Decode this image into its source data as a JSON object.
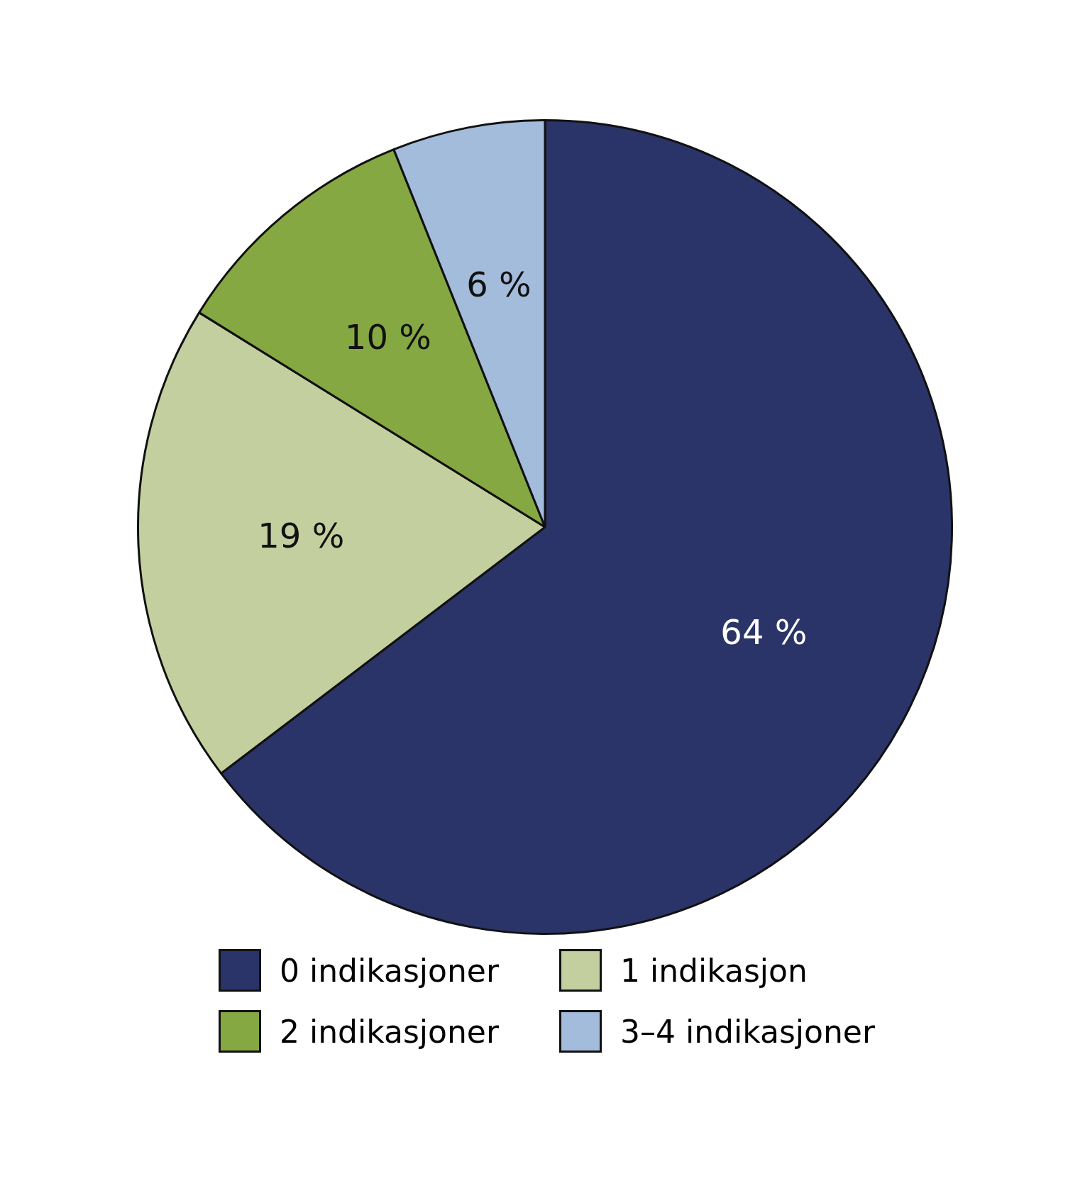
{
  "chart_data": {
    "type": "pie",
    "categories": [
      "0 indikasjoner",
      "1 indikasjon",
      "2 indikasjoner",
      "3–4 indikasjoner"
    ],
    "values": [
      64,
      19,
      10,
      6
    ],
    "colors": [
      "#2a3468",
      "#c4cf9f",
      "#86a843",
      "#a4bcdc"
    ],
    "value_labels": [
      "64 %",
      "19 %",
      "10 %",
      "6 %"
    ],
    "legend": "bottom"
  }
}
